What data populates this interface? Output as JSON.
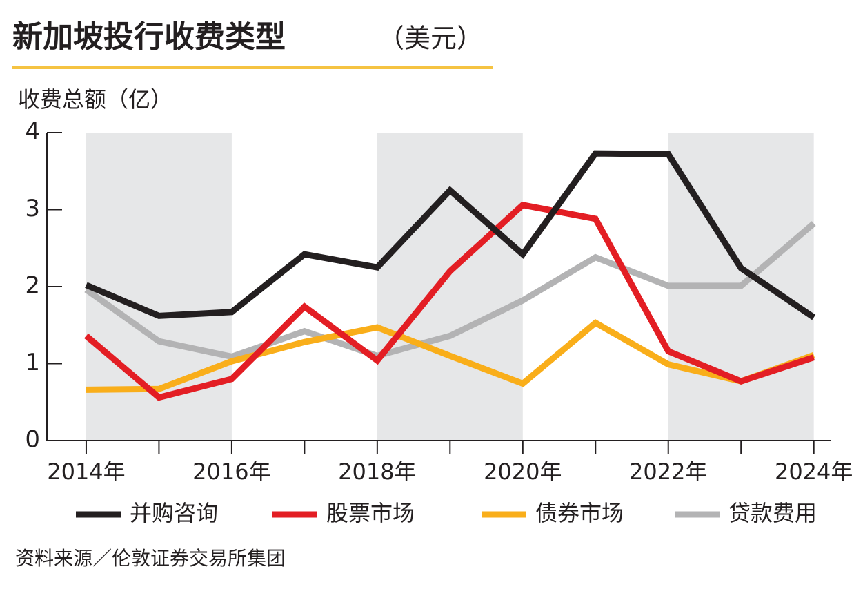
{
  "chart_data": {
    "type": "line",
    "title": "新加坡投行收费类型",
    "subtitle": "（美元）",
    "y_label": "收费总额（亿）",
    "source": "资料来源／伦敦证券交易所集团",
    "x": [
      2014,
      2015,
      2016,
      2017,
      2018,
      2019,
      2020,
      2021,
      2022,
      2023,
      2024
    ],
    "xlim": [
      2013.46,
      2024.24
    ],
    "xticks": [
      {
        "value": 2014,
        "label": "2014年"
      },
      {
        "value": 2016,
        "label": "2016年"
      },
      {
        "value": 2018,
        "label": "2018年"
      },
      {
        "value": 2020,
        "label": "2020年"
      },
      {
        "value": 2022,
        "label": "2022年"
      },
      {
        "value": 2024,
        "label": "2024年"
      }
    ],
    "xminorticks": [
      2015,
      2017,
      2019,
      2021,
      2023
    ],
    "shaded_bands": [
      [
        2014,
        2016
      ],
      [
        2018,
        2020
      ],
      [
        2022,
        2024
      ]
    ],
    "ylim": [
      0,
      4
    ],
    "yticks": [
      0,
      1,
      2,
      3,
      4
    ],
    "series": [
      {
        "name": "并购咨询",
        "color": "#231f20",
        "values": [
          2.02,
          1.62,
          1.67,
          2.42,
          2.25,
          3.25,
          2.42,
          3.73,
          3.72,
          2.24,
          1.6
        ]
      },
      {
        "name": "股票市场",
        "color": "#e31e24",
        "values": [
          1.36,
          0.56,
          0.8,
          1.74,
          1.04,
          2.2,
          3.06,
          2.88,
          1.16,
          0.77,
          1.08
        ]
      },
      {
        "name": "债券市场",
        "color": "#f9ae1a",
        "values": [
          0.66,
          0.67,
          1.03,
          1.28,
          1.47,
          1.1,
          0.74,
          1.53,
          0.99,
          0.77,
          1.11
        ]
      },
      {
        "name": "贷款费用",
        "color": "#b3b3b4",
        "values": [
          1.96,
          1.29,
          1.09,
          1.42,
          1.1,
          1.36,
          1.82,
          2.38,
          2.01,
          2.01,
          2.82
        ]
      }
    ]
  }
}
